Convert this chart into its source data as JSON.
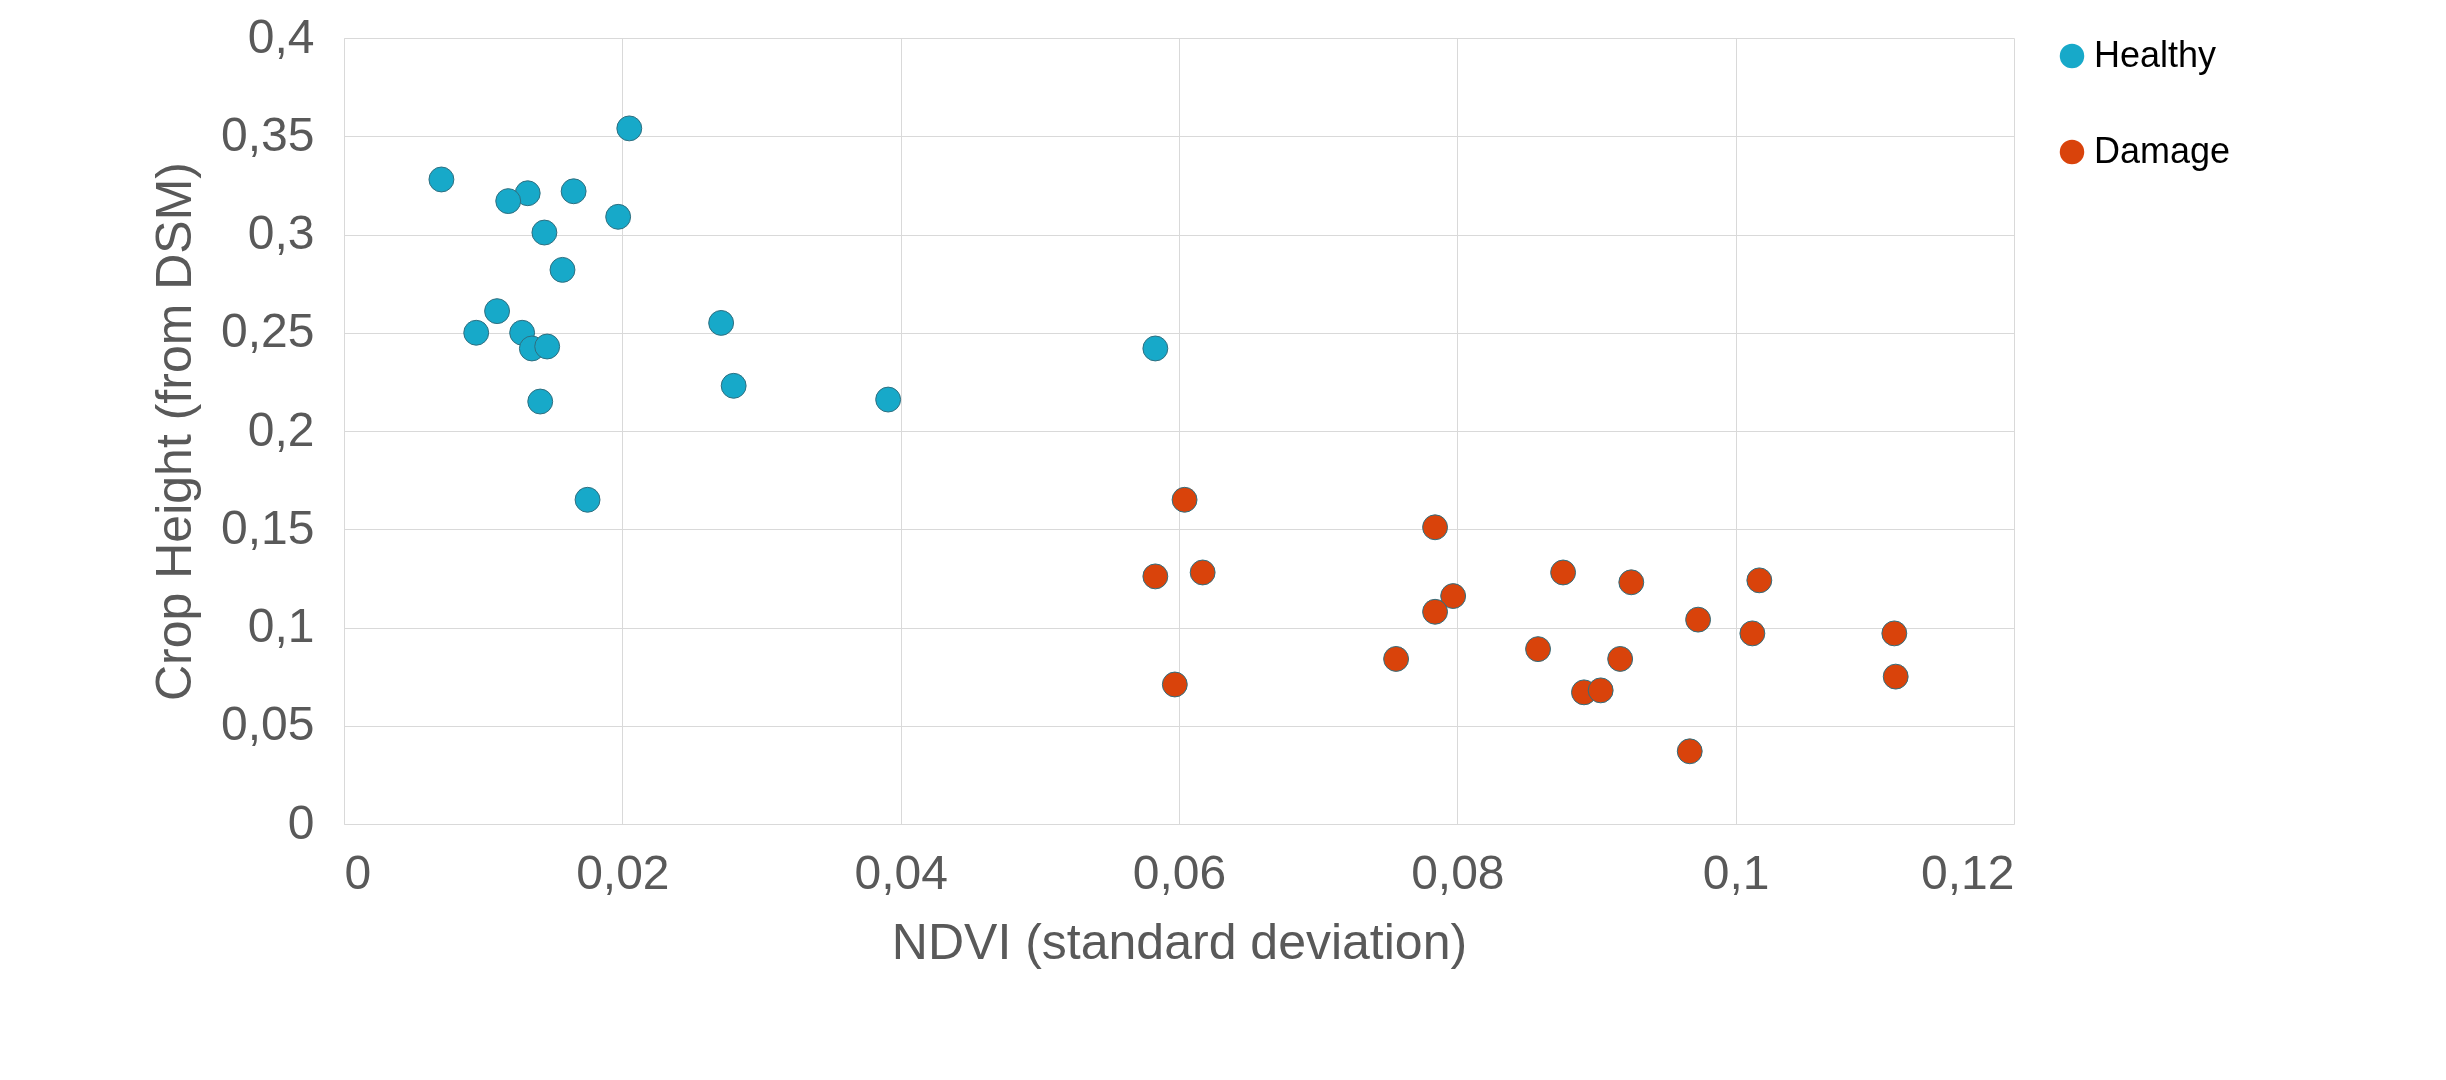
{
  "chart_data": {
    "type": "scatter",
    "xlabel": "NDVI (standard deviation)",
    "ylabel": "Crop Height (from DSM)",
    "xlim": [
      0,
      0.12
    ],
    "ylim": [
      0,
      0.4
    ],
    "xticks": [
      0,
      {
        "value": 0.02,
        "label": "0,02"
      },
      {
        "value": 0.04,
        "label": "0,04"
      },
      {
        "value": 0.06,
        "label": "0,06"
      },
      {
        "value": 0.08,
        "label": "0,08"
      },
      {
        "value": 0.1,
        "label": "0,1"
      },
      {
        "value": 0.12,
        "label": "0,12"
      }
    ],
    "yticks": [
      0,
      {
        "value": 0.05,
        "label": "0,05"
      },
      {
        "value": 0.1,
        "label": "0,1"
      },
      {
        "value": 0.15,
        "label": "0,15"
      },
      {
        "value": 0.2,
        "label": "0,2"
      },
      {
        "value": 0.25,
        "label": "0,25"
      },
      {
        "value": 0.3,
        "label": "0,3"
      },
      {
        "value": 0.35,
        "label": "0,35"
      },
      {
        "value": 0.4,
        "label": "0,4"
      }
    ],
    "grid": true,
    "legend": "right",
    "marker": "circle",
    "series": [
      {
        "name": "Healthy",
        "color": "#17a9c9",
        "x": [
          0.007,
          0.0205,
          0.0132,
          0.0165,
          0.0118,
          0.0197,
          0.0144,
          0.0157,
          0.011,
          0.0095,
          0.0128,
          0.0135,
          0.0146,
          0.0271,
          0.0583,
          0.028,
          0.0141,
          0.0391,
          0.0175
        ],
        "values": [
          0.328,
          0.354,
          0.321,
          0.322,
          0.317,
          0.309,
          0.301,
          0.282,
          0.261,
          0.25,
          0.25,
          0.242,
          0.243,
          0.255,
          0.242,
          0.223,
          0.215,
          0.216,
          0.165
        ]
      },
      {
        "name": "Damage",
        "color": "#d9430b",
        "x": [
          0.0604,
          0.0583,
          0.0617,
          0.0597,
          0.0784,
          0.0797,
          0.0784,
          0.0756,
          0.0876,
          0.0858,
          0.0925,
          0.0917,
          0.0891,
          0.0903,
          0.0967,
          0.0973,
          0.1017,
          0.1012,
          0.1114,
          0.1115
        ],
        "values": [
          0.165,
          0.126,
          0.128,
          0.071,
          0.151,
          0.116,
          0.108,
          0.084,
          0.128,
          0.089,
          0.123,
          0.084,
          0.067,
          0.068,
          0.037,
          0.104,
          0.124,
          0.097,
          0.097,
          0.075
        ]
      }
    ]
  }
}
